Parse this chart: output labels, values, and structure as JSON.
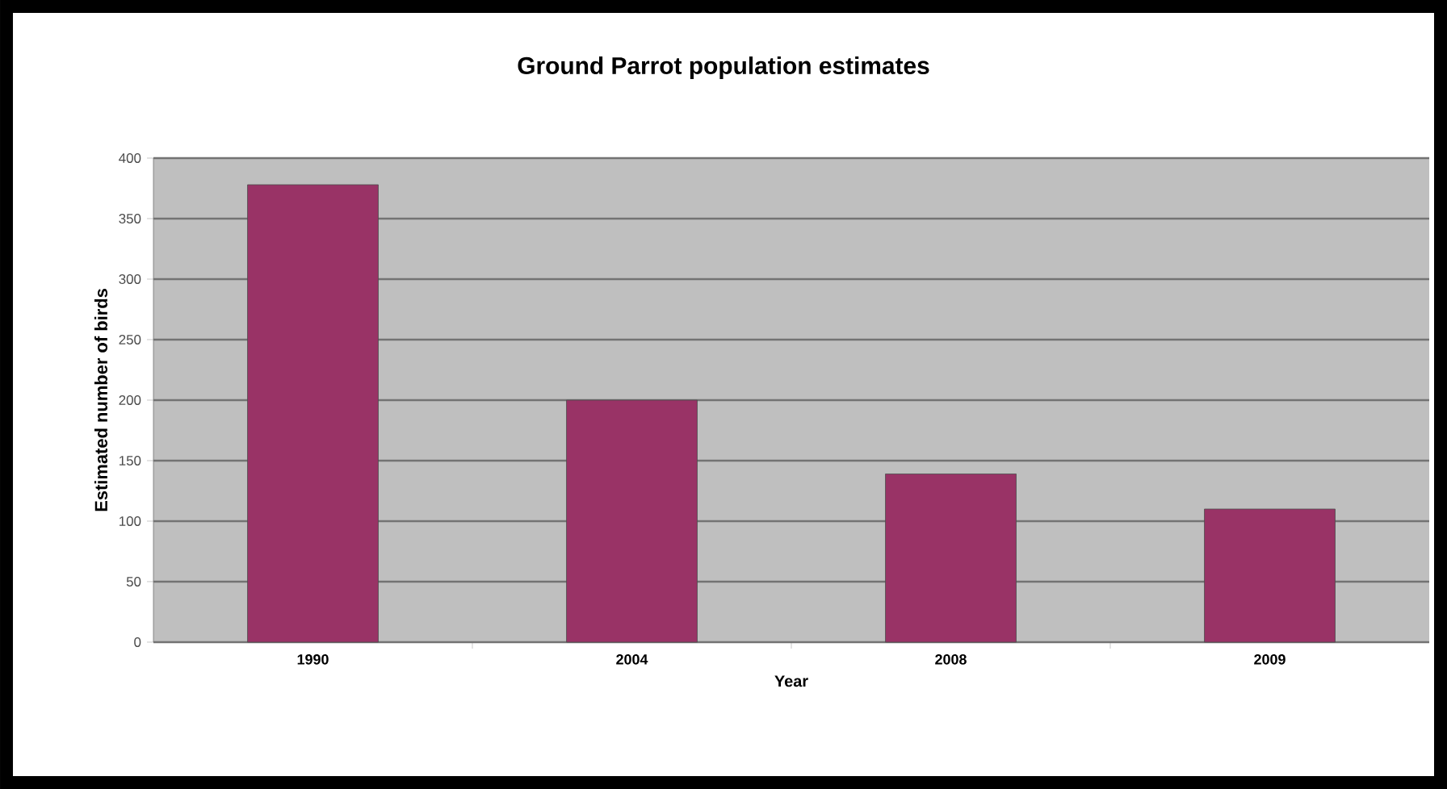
{
  "chart_data": {
    "type": "bar",
    "title": "Ground Parrot population estimates",
    "xlabel": "Year",
    "ylabel": "Estimated number of birds",
    "categories": [
      "1990",
      "2004",
      "2008",
      "2009"
    ],
    "values": [
      378,
      200,
      139,
      110
    ],
    "color": "#993366",
    "ylim": [
      0,
      400
    ],
    "yticks": [
      0,
      50,
      100,
      150,
      200,
      250,
      300,
      350,
      400
    ],
    "grid": "y"
  }
}
